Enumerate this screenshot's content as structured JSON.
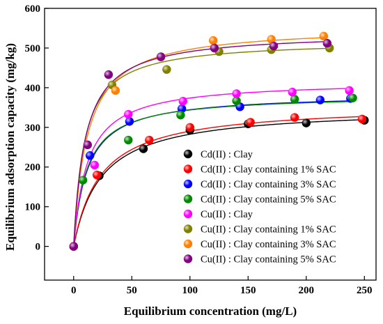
{
  "chart_data": {
    "type": "scatter",
    "xlabel": "Equilibrium concentration (mg/L)",
    "ylabel": "Equilibrium adsorption capacity (mg/kg)",
    "xlim": [
      -25,
      260
    ],
    "ylim": [
      -85,
      600
    ],
    "xticks": [
      0,
      50,
      100,
      150,
      200,
      250
    ],
    "yticks": [
      0,
      100,
      200,
      300,
      400,
      500,
      600
    ],
    "grid": false,
    "legend_position": "bottom-right",
    "series": [
      {
        "name": "Cd(II) : Clay",
        "color": "#000000",
        "qmax": 350,
        "K": 0.042,
        "x": [
          0,
          22,
          60,
          100,
          150,
          200,
          250
        ],
        "y": [
          0,
          178,
          246,
          293,
          309,
          311,
          318
        ]
      },
      {
        "name": "Cd(II) : Clay containing 1% SAC",
        "color": "#ff0000",
        "qmax": 358,
        "K": 0.043,
        "x": [
          0,
          20,
          65,
          100,
          152,
          190,
          248
        ],
        "y": [
          0,
          180,
          268,
          300,
          313,
          325,
          321
        ]
      },
      {
        "name": "Cd(II) : Clay containing 3% SAC",
        "color": "#0000ff",
        "qmax": 385,
        "K": 0.085,
        "x": [
          0,
          14,
          48,
          93,
          143,
          212,
          238
        ],
        "y": [
          0,
          229,
          315,
          347,
          352,
          369,
          373
        ]
      },
      {
        "name": "Cd(II) : Clay containing 5% SAC",
        "color": "#008800",
        "qmax": 382,
        "K": 0.09,
        "x": [
          0,
          8,
          47,
          92,
          140,
          190,
          240
        ],
        "y": [
          0,
          167,
          268,
          331,
          367,
          371,
          374
        ]
      },
      {
        "name": "Cu(II) : Clay",
        "color": "#ff00ff",
        "qmax": 418,
        "K": 0.085,
        "x": [
          0,
          18,
          47,
          94,
          140,
          188,
          237
        ],
        "y": [
          0,
          205,
          333,
          366,
          385,
          389,
          393
        ]
      },
      {
        "name": "Cu(II) : Clay containing 1% SAC",
        "color": "#808000",
        "qmax": 520,
        "K": 0.11,
        "x": [
          0,
          33,
          80,
          125,
          170,
          220
        ],
        "y": [
          0,
          407,
          446,
          491,
          496,
          500
        ]
      },
      {
        "name": "Cu(II) : Clay containing 3% SAC",
        "color": "#ff8000",
        "qmax": 555,
        "K": 0.085,
        "x": [
          0,
          36,
          75,
          120,
          170,
          215
        ],
        "y": [
          0,
          393,
          477,
          519,
          522,
          530
        ]
      },
      {
        "name": "Cu(II) : Clay containing 5% SAC",
        "color": "#800080",
        "qmax": 540,
        "K": 0.1,
        "x": [
          0,
          12,
          30,
          75,
          121,
          172,
          218
        ],
        "y": [
          0,
          256,
          433,
          478,
          500,
          505,
          512
        ]
      }
    ]
  }
}
